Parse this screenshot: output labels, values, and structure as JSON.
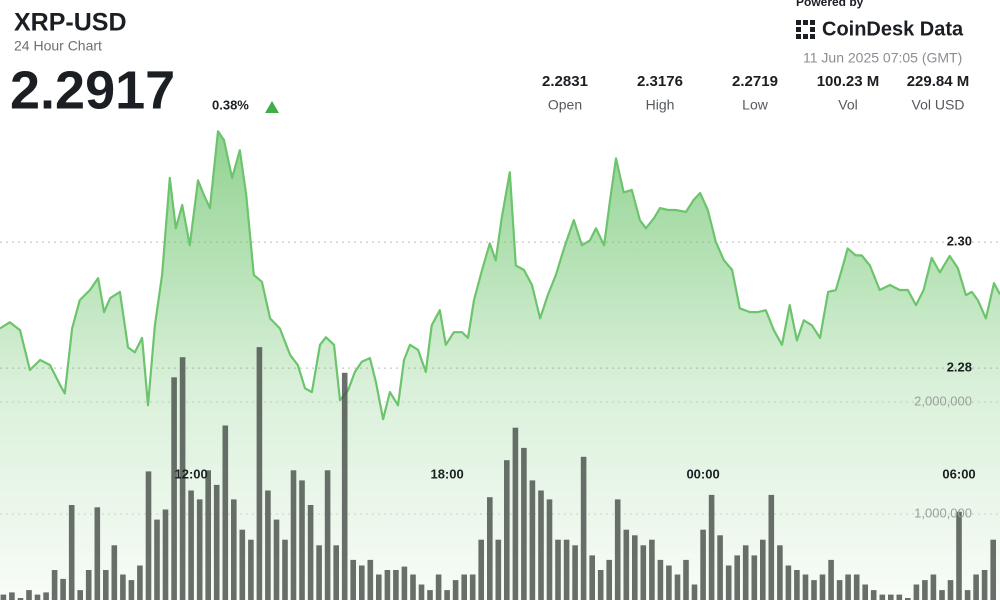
{
  "chart_data": {
    "type": "line",
    "title": "XRP-USD",
    "subtitle": "24 Hour Chart",
    "last_price": 2.2917,
    "change": "0.38%",
    "powered_by": "Powered by",
    "brand": "CoinDesk Data",
    "timestamp": "11 Jun 2025 07:05 (GMT)",
    "stats": [
      {
        "value": 2.2831,
        "label": "Open"
      },
      {
        "value": 2.3176,
        "label": "High"
      },
      {
        "value": 2.2719,
        "label": "Low"
      },
      {
        "value": "100.23 M",
        "label": "Vol"
      },
      {
        "value": "229.84 M",
        "label": "Vol USD"
      }
    ],
    "xlim": [
      7.52,
      30.96
    ],
    "xticks": [
      {
        "value": 12,
        "label": "12:00"
      },
      {
        "value": 18,
        "label": "18:00"
      },
      {
        "value": 24,
        "label": "00:00"
      },
      {
        "value": 30,
        "label": "06:00"
      }
    ],
    "ylim": [
      2.2432,
      2.3178
    ],
    "yticks": [
      2.28,
      {
        "value": 2.3,
        "label": "2.30"
      }
    ],
    "y2lim": [
      232000,
      4428000
    ],
    "y2ticks": [
      {
        "value": 1000000,
        "label": "1,000,000"
      },
      {
        "value": 2000000,
        "label": "2,000,000"
      }
    ],
    "grid": true,
    "series": [
      {
        "type": "area",
        "color": "#6cc46c",
        "x": [
          7.52,
          7.75,
          7.99,
          8.22,
          8.46,
          8.69,
          8.93,
          9.04,
          9.21,
          9.39,
          9.63,
          9.82,
          9.96,
          10.1,
          10.33,
          10.52,
          10.68,
          10.85,
          10.99,
          11.15,
          11.32,
          11.5,
          11.64,
          11.79,
          11.97,
          12.16,
          12.3,
          12.44,
          12.63,
          12.77,
          12.96,
          13.14,
          13.29,
          13.47,
          13.66,
          13.85,
          14.08,
          14.32,
          14.5,
          14.67,
          14.83,
          15.02,
          15.16,
          15.35,
          15.49,
          15.68,
          15.84,
          16.0,
          16.19,
          16.33,
          16.5,
          16.66,
          16.85,
          16.99,
          17.13,
          17.32,
          17.5,
          17.64,
          17.83,
          17.97,
          18.16,
          18.35,
          18.49,
          18.63,
          18.82,
          19.0,
          19.14,
          19.28,
          19.47,
          19.61,
          19.8,
          19.99,
          20.18,
          20.36,
          20.55,
          20.74,
          20.97,
          21.16,
          21.35,
          21.49,
          21.68,
          21.82,
          21.96,
          22.14,
          22.33,
          22.52,
          22.66,
          22.85,
          22.99,
          23.18,
          23.36,
          23.6,
          23.78,
          23.93,
          24.11,
          24.3,
          24.49,
          24.68,
          24.86,
          25.1,
          25.28,
          25.47,
          25.66,
          25.85,
          26.03,
          26.2,
          26.36,
          26.55,
          26.74,
          26.93,
          27.11,
          27.25,
          27.39,
          27.58,
          27.72,
          27.91,
          28.14,
          28.38,
          28.61,
          28.8,
          28.99,
          29.17,
          29.36,
          29.55,
          29.78,
          29.97,
          30.16,
          30.3,
          30.44,
          30.63,
          30.82,
          30.96
        ],
        "values": [
          2.2863,
          2.2873,
          2.286,
          2.2797,
          2.2813,
          2.2805,
          2.2773,
          2.276,
          2.2863,
          2.2908,
          2.2924,
          2.2943,
          2.2889,
          2.2911,
          2.2921,
          2.2833,
          2.2825,
          2.2848,
          2.2741,
          2.2868,
          2.2948,
          2.3102,
          2.3022,
          2.3059,
          2.2995,
          2.3098,
          2.3075,
          2.3054,
          2.3176,
          2.3162,
          2.3102,
          2.3146,
          2.3075,
          2.2948,
          2.2937,
          2.2879,
          2.2863,
          2.2821,
          2.2805,
          2.2768,
          2.2762,
          2.2837,
          2.2849,
          2.2837,
          2.2749,
          2.2765,
          2.2794,
          2.281,
          2.2816,
          2.2778,
          2.2719,
          2.2762,
          2.2741,
          2.2813,
          2.2837,
          2.2829,
          2.2794,
          2.2868,
          2.2892,
          2.2837,
          2.2857,
          2.2857,
          2.2848,
          2.2908,
          2.2956,
          2.2998,
          2.2971,
          2.3038,
          2.3111,
          2.2963,
          2.2956,
          2.2932,
          2.2879,
          2.2916,
          2.2948,
          2.299,
          2.3035,
          2.2995,
          2.3003,
          2.3022,
          2.2995,
          2.3067,
          2.3133,
          2.3079,
          2.3083,
          2.3035,
          2.3022,
          2.3038,
          2.3054,
          2.3051,
          2.3051,
          2.3048,
          2.3067,
          2.3078,
          2.3051,
          2.3,
          2.2971,
          2.2956,
          2.2895,
          2.2889,
          2.2889,
          2.2892,
          2.286,
          2.2837,
          2.29,
          2.2844,
          2.2876,
          2.2868,
          2.2848,
          2.2921,
          2.2924,
          2.2956,
          2.299,
          2.2979,
          2.2979,
          2.2963,
          2.2924,
          2.2932,
          2.2924,
          2.2924,
          2.29,
          2.2924,
          2.2975,
          2.2952,
          2.2978,
          2.2959,
          2.2916,
          2.2921,
          2.2908,
          2.2879,
          2.2935,
          2.2917
        ]
      },
      {
        "type": "bar",
        "axis": "y2",
        "color": "#4f5650",
        "x": [
          7.6,
          7.8,
          8.0,
          8.2,
          8.4,
          8.6,
          8.8,
          9.0,
          9.2,
          9.4,
          9.6,
          9.8,
          10.0,
          10.2,
          10.4,
          10.6,
          10.8,
          11.0,
          11.2,
          11.4,
          11.6,
          11.8,
          12.0,
          12.2,
          12.4,
          12.6,
          12.8,
          13.0,
          13.2,
          13.4,
          13.6,
          13.8,
          14.0,
          14.2,
          14.4,
          14.6,
          14.8,
          15.0,
          15.2,
          15.4,
          15.6,
          15.8,
          16.0,
          16.2,
          16.4,
          16.6,
          16.8,
          17.0,
          17.2,
          17.4,
          17.6,
          17.8,
          18.0,
          18.2,
          18.4,
          18.6,
          18.8,
          19.0,
          19.2,
          19.4,
          19.6,
          19.8,
          20.0,
          20.2,
          20.4,
          20.6,
          20.8,
          21.0,
          21.2,
          21.4,
          21.6,
          21.8,
          22.0,
          22.2,
          22.4,
          22.6,
          22.8,
          23.0,
          23.2,
          23.4,
          23.6,
          23.8,
          24.0,
          24.2,
          24.4,
          24.6,
          24.8,
          25.0,
          25.2,
          25.4,
          25.6,
          25.8,
          26.0,
          26.2,
          26.4,
          26.6,
          26.8,
          27.0,
          27.2,
          27.4,
          27.6,
          27.8,
          28.0,
          28.2,
          28.4,
          28.6,
          28.8,
          29.0,
          29.2,
          29.4,
          29.6,
          29.8,
          30.0,
          30.2,
          30.4,
          30.6,
          30.8
        ],
        "values": [
          280000,
          300000,
          250000,
          320000,
          280000,
          300000,
          500000,
          420000,
          1080000,
          320000,
          500000,
          1060000,
          500000,
          720000,
          460000,
          410000,
          540000,
          1380000,
          950000,
          1040000,
          2220000,
          2400000,
          1210000,
          1130000,
          1390000,
          1260000,
          1790000,
          1130000,
          860000,
          770000,
          2490000,
          1210000,
          950000,
          770000,
          1390000,
          1300000,
          1080000,
          720000,
          1390000,
          720000,
          2260000,
          590000,
          540000,
          590000,
          460000,
          500000,
          500000,
          530000,
          460000,
          370000,
          320000,
          460000,
          320000,
          410000,
          460000,
          460000,
          770000,
          1150000,
          770000,
          1480000,
          1770000,
          1590000,
          1300000,
          1210000,
          1130000,
          770000,
          770000,
          720000,
          1510000,
          630000,
          500000,
          590000,
          1130000,
          860000,
          810000,
          720000,
          770000,
          590000,
          540000,
          460000,
          590000,
          370000,
          860000,
          1170000,
          810000,
          540000,
          630000,
          720000,
          630000,
          770000,
          1170000,
          720000,
          540000,
          500000,
          460000,
          410000,
          460000,
          590000,
          410000,
          460000,
          460000,
          370000,
          320000,
          280000,
          280000,
          280000,
          250000,
          370000,
          410000,
          460000,
          320000,
          410000,
          1020000,
          320000,
          460000,
          500000,
          770000
        ]
      }
    ]
  }
}
